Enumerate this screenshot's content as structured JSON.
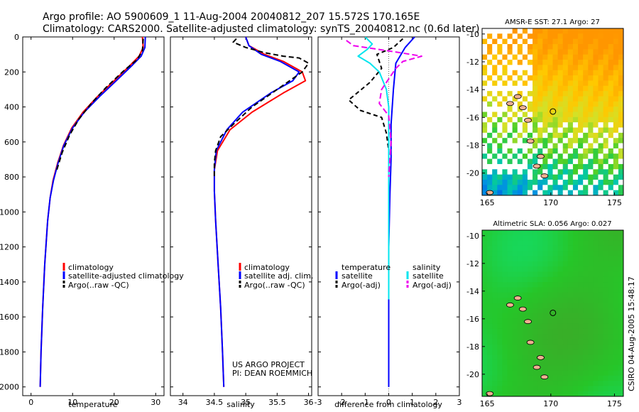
{
  "title_line1": "Argo profile: AO 5900609_1 11-Aug-2004 20040812_207 15.572S 170.165E",
  "title_line2": "Climatology: CARS2000. Satellite-adjusted climatology: synTS_20040812.nc (0.6d later)",
  "side_stamp": "CSIRO 04-Aug-2005 15:48:17",
  "project_line1": "US ARGO PROJECT",
  "project_line2": "PI: DEAN ROEMMICH",
  "colors": {
    "climatology": "#ff0000",
    "satellite": "#0000ff",
    "argo": "#000000",
    "sal_sat": "#00e5ee",
    "sal_argo": "#ee00ee"
  },
  "chart_data": [
    {
      "type": "line",
      "id": "temperature",
      "xlabel": "temperature",
      "xlim": [
        -2,
        32
      ],
      "ylim": [
        2050,
        0
      ],
      "xticks": [
        0,
        10,
        20,
        30
      ],
      "yticks": [
        0,
        200,
        400,
        600,
        800,
        1000,
        1200,
        1400,
        1600,
        1800,
        2000
      ],
      "legend": [
        "climatology",
        "satellite-adjusted climatology",
        "Argo(..raw -QC)"
      ],
      "series": [
        {
          "name": "climatology",
          "color": "#ff0000",
          "dash": "",
          "x": [
            26.8,
            27.0,
            26.0,
            23.5,
            20.0,
            16.0,
            12.5,
            9.8,
            7.8,
            6.4,
            5.3,
            4.6,
            4.0,
            3.3,
            2.8,
            2.4,
            2.2
          ],
          "y": [
            0,
            60,
            110,
            170,
            250,
            340,
            430,
            520,
            620,
            720,
            820,
            920,
            1050,
            1300,
            1550,
            1800,
            2000
          ]
        },
        {
          "name": "satellite-adjusted climatology",
          "color": "#0000ff",
          "dash": "",
          "x": [
            27.5,
            27.4,
            26.5,
            24.0,
            20.5,
            16.5,
            12.8,
            10.0,
            7.9,
            6.5,
            5.4,
            4.6,
            4.0,
            3.3,
            2.8,
            2.4,
            2.2
          ],
          "y": [
            0,
            60,
            110,
            170,
            250,
            340,
            430,
            520,
            620,
            720,
            820,
            920,
            1050,
            1300,
            1550,
            1800,
            2000
          ]
        },
        {
          "name": "Argo(..raw -QC)",
          "color": "#000000",
          "dash": "7,4",
          "x": [
            27.0,
            26.8,
            25.5,
            22.0,
            18.0,
            14.5,
            11.5,
            9.3,
            7.5,
            6.2
          ],
          "y": [
            10,
            80,
            130,
            200,
            290,
            380,
            470,
            560,
            660,
            760
          ]
        }
      ]
    },
    {
      "type": "line",
      "id": "salinity",
      "xlabel": "salinity",
      "xlim": [
        33.8,
        36.05
      ],
      "ylim": [
        2050,
        0
      ],
      "xticks": [
        34,
        34.5,
        35,
        35.5,
        36
      ],
      "legend": [
        "climatology",
        "satellite adj. clim.",
        "Argo(..raw -QC)"
      ],
      "series": [
        {
          "name": "climatology",
          "color": "#ff0000",
          "dash": "",
          "x": [
            35.0,
            35.05,
            35.3,
            35.6,
            35.9,
            35.95,
            35.6,
            35.1,
            34.75,
            34.55,
            34.5,
            34.5,
            34.52,
            34.56,
            34.6,
            34.63,
            34.65
          ],
          "y": [
            0,
            50,
            100,
            140,
            200,
            250,
            320,
            430,
            530,
            650,
            760,
            880,
            1050,
            1300,
            1550,
            1800,
            2000
          ]
        },
        {
          "name": "satellite adj. clim.",
          "color": "#0000ff",
          "dash": "",
          "x": [
            35.0,
            35.05,
            35.25,
            35.55,
            35.85,
            35.75,
            35.4,
            34.95,
            34.7,
            34.53,
            34.5,
            34.5,
            34.52,
            34.56,
            34.6,
            34.63,
            34.65
          ],
          "y": [
            0,
            50,
            100,
            140,
            200,
            250,
            320,
            430,
            530,
            650,
            760,
            880,
            1050,
            1300,
            1550,
            1800,
            2000
          ]
        },
        {
          "name": "Argo(..raw -QC)",
          "color": "#000000",
          "dash": "7,4",
          "x": [
            34.85,
            34.8,
            35.0,
            35.3,
            35.6,
            35.85,
            36.0,
            35.9,
            35.5,
            35.1,
            34.8,
            34.6,
            34.52,
            34.5,
            34.5
          ],
          "y": [
            10,
            30,
            60,
            90,
            110,
            120,
            150,
            200,
            300,
            400,
            500,
            570,
            650,
            720,
            800
          ]
        }
      ]
    },
    {
      "type": "line",
      "id": "difference",
      "xlabel": "difference from climatology",
      "xlim": [
        -3,
        3
      ],
      "ylim": [
        2050,
        0
      ],
      "xticks": [
        -3,
        -2,
        -1,
        0,
        1,
        2,
        3
      ],
      "legend": [
        "temperature",
        "satellite",
        "Argo(-adj)",
        "salinity",
        "satellite",
        "Argo(-adj)"
      ],
      "series": [
        {
          "name": "temperature satellite",
          "color": "#0000ff",
          "dash": "",
          "x": [
            1.1,
            0.7,
            0.3,
            0.2,
            0.1,
            0.1,
            0.05,
            0.0,
            0.0
          ],
          "y": [
            0,
            60,
            150,
            300,
            500,
            700,
            900,
            1200,
            2000
          ]
        },
        {
          "name": "temperature Argo(-adj)",
          "color": "#000000",
          "dash": "6,4",
          "x": [
            0.6,
            0.2,
            -0.5,
            -0.3,
            -0.8,
            -1.7,
            -1.2,
            -0.3,
            -0.1,
            0.0,
            0.0
          ],
          "y": [
            10,
            60,
            100,
            180,
            260,
            360,
            420,
            460,
            550,
            650,
            760
          ]
        },
        {
          "name": "salinity satellite",
          "color": "#00e5ee",
          "dash": "",
          "x": [
            -1.0,
            -0.7,
            -0.9,
            -1.3,
            -0.8,
            -0.4,
            -0.1,
            0.0,
            0.0,
            0.0,
            0.0
          ],
          "y": [
            0,
            40,
            70,
            110,
            150,
            200,
            300,
            400,
            600,
            1000,
            1500
          ]
        },
        {
          "name": "salinity Argo(-adj)",
          "color": "#ee00ee",
          "dash": "8,4",
          "x": [
            -1.8,
            -1.5,
            -0.5,
            0.5,
            1.4,
            0.6,
            0.3,
            -0.3,
            -0.4,
            0.0,
            0.1,
            0.0
          ],
          "y": [
            20,
            50,
            70,
            90,
            110,
            140,
            180,
            300,
            380,
            450,
            600,
            800
          ]
        }
      ]
    }
  ],
  "maps": [
    {
      "title": "AMSR-E SST: 27.1 Argo: 27",
      "xticks": [
        165,
        170,
        175
      ],
      "yticks": [
        -10,
        -12,
        -14,
        -16,
        -18,
        -20
      ],
      "marker": [
        170.165,
        -15.572
      ]
    },
    {
      "title": "Altimetric SLA: 0.056 Argo: 0.027",
      "xticks": [
        165,
        170,
        175
      ],
      "yticks": [
        -10,
        -12,
        -14,
        -16,
        -18,
        -20
      ],
      "marker": [
        170.165,
        -15.572
      ]
    }
  ]
}
